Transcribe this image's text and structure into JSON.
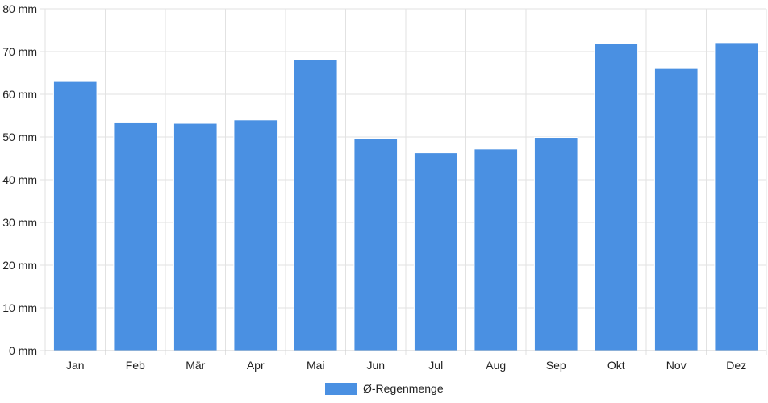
{
  "chart_data": {
    "type": "bar",
    "categories": [
      "Jan",
      "Feb",
      "Mär",
      "Apr",
      "Mai",
      "Jun",
      "Jul",
      "Aug",
      "Sep",
      "Okt",
      "Nov",
      "Dez"
    ],
    "series": [
      {
        "name": "Ø-Regenmenge",
        "color": "#4a90e2",
        "values": [
          63,
          53.5,
          53.2,
          54,
          68.2,
          49.6,
          46.3,
          47.2,
          49.9,
          71.9,
          66.2,
          72.1
        ]
      }
    ],
    "ylim": [
      0,
      80
    ],
    "yticks": [
      0,
      10,
      20,
      30,
      40,
      50,
      60,
      70,
      80
    ],
    "y_unit_suffix": " mm",
    "grid": true,
    "legend_position": "bottom"
  }
}
